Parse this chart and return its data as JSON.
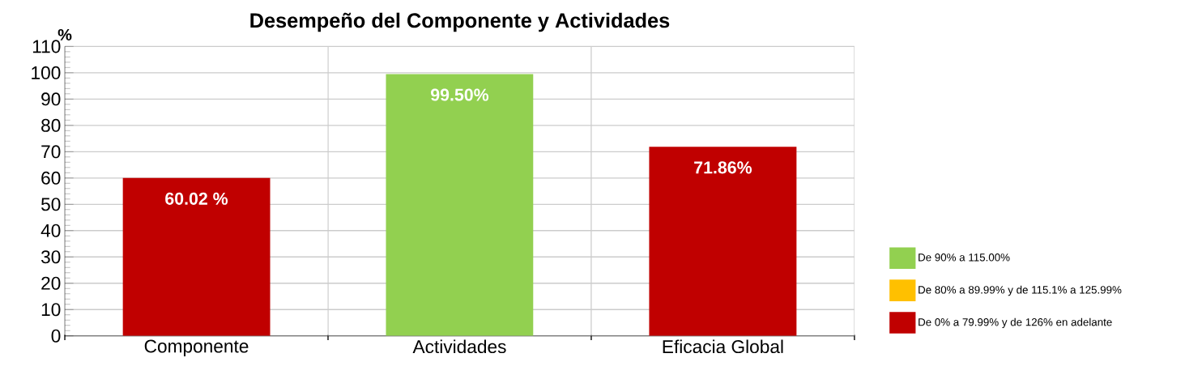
{
  "chart_data": {
    "type": "bar",
    "title": "Desempeño del Componente y Actividades",
    "ylabel": "%",
    "categories": [
      "Componente",
      "Actividades",
      "Eficacia Global"
    ],
    "series": [
      {
        "name": "De 90% a 115.00%",
        "color": "#92d050",
        "values": [
          null,
          99.5,
          null
        ],
        "value_labels": [
          null,
          "99.50%",
          null
        ]
      },
      {
        "name": "De 80% a 89.99% y de 115.1% a 125.99%",
        "color": "#ffc000",
        "values": [
          null,
          null,
          null
        ]
      },
      {
        "name": "De 0% a 79.99% y de 126% en adelante",
        "color": "#c00000",
        "values": [
          60.02,
          null,
          71.86
        ],
        "value_labels": [
          "60.02 %",
          null,
          "71.86%"
        ]
      }
    ],
    "ylim": [
      0,
      110
    ],
    "yticks": [
      0,
      10,
      20,
      30,
      40,
      50,
      60,
      70,
      80,
      90,
      100,
      110
    ],
    "grid": true,
    "legend": "right"
  }
}
